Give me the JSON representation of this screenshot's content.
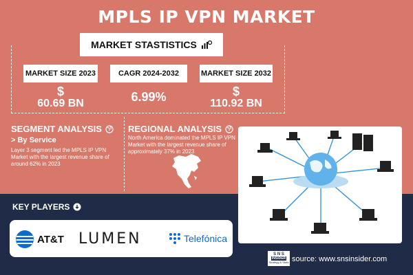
{
  "title": "MPLS IP VPN MARKET",
  "stats": {
    "heading": "MARKET STASTISTICS",
    "items": [
      {
        "label": "MARKET SIZE 2023",
        "currency": "$",
        "value": "60.69 BN"
      },
      {
        "label": "CAGR 2024-2032",
        "currency": "",
        "value": "6.99%"
      },
      {
        "label": "MARKET SIZE 2032",
        "currency": "$",
        "value": "110.92 BN"
      }
    ]
  },
  "segment": {
    "title": "SEGMENT ANALYSIS",
    "sub": "> By Service",
    "text": "Layer 3 segment led the MPLS IP VPN Market with the largest revenue share of around 62% in 2023"
  },
  "regional": {
    "title": "REGIONAL ANALYSIS",
    "text": "North America dominated the MPLS IP VPN Market with the largest revenue share of approximately 37% in 2023"
  },
  "key_players": {
    "title": "KEY PLAYERS",
    "logos": [
      "AT&T",
      "LUMEN",
      "Telefónica"
    ]
  },
  "source": "source: www.snsinsider.com",
  "brand": {
    "top": "S N S",
    "mid": "INSIDER",
    "bottom": "Strategy & Stats"
  },
  "colors": {
    "background": "#d8786a",
    "bottom_band": "#1f2b47",
    "lumen": "#1b1b1b",
    "telefonica": "#0b6ad4"
  }
}
